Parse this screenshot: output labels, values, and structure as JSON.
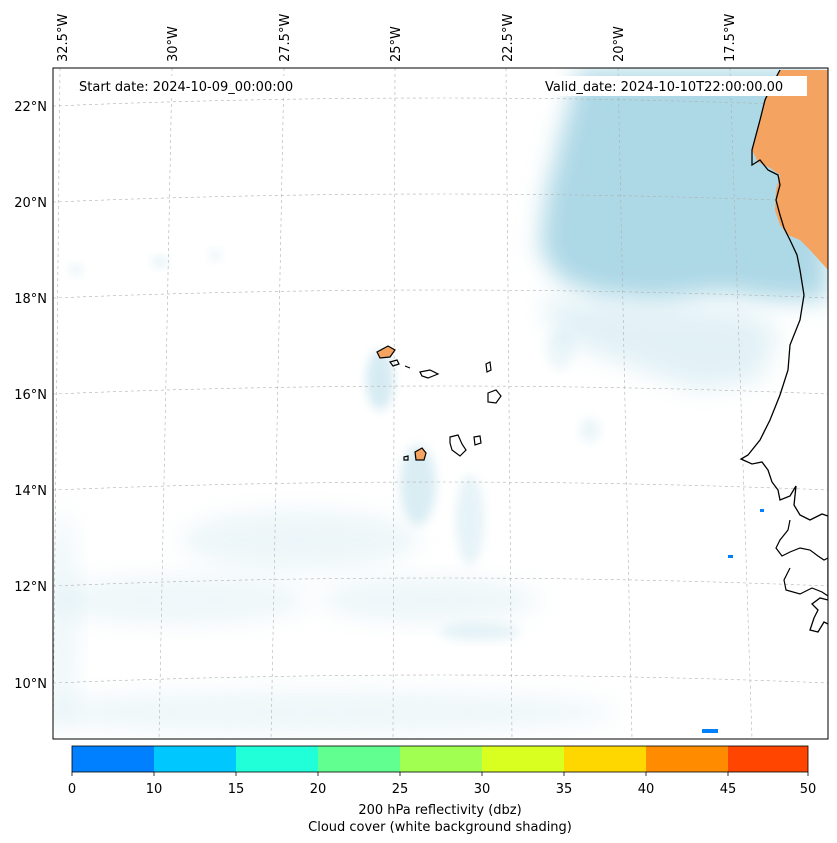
{
  "map": {
    "start_label": "Start date: 2024-10-09_00:00:00",
    "valid_label": "Valid_date: 2024-10-10T22:00:00.00",
    "top_lon_labels": [
      "32.5°W",
      "30°W",
      "27.5°W",
      "25°W",
      "22.5°W",
      "20°W",
      "17.5°W"
    ],
    "left_lat_labels": [
      "22°N",
      "20°N",
      "18°N",
      "16°N",
      "14°N",
      "12°N",
      "10°N"
    ],
    "colors": {
      "cloud": "#add8e6",
      "land_reflectivity": "#f4a460",
      "coastline": "#000000",
      "grid": "#b0b0b0"
    }
  },
  "colorbar": {
    "ticks": [
      "0",
      "10",
      "15",
      "20",
      "25",
      "30",
      "35",
      "40",
      "45",
      "50"
    ],
    "colors": [
      "#0080ff",
      "#00c8ff",
      "#20ffd8",
      "#60ff90",
      "#a0ff50",
      "#d8ff20",
      "#ffd700",
      "#ff8c00",
      "#ff4500"
    ],
    "label_line1": "200 hPa reflectivity (dbz)",
    "label_line2": "Cloud cover (white background shading)"
  }
}
